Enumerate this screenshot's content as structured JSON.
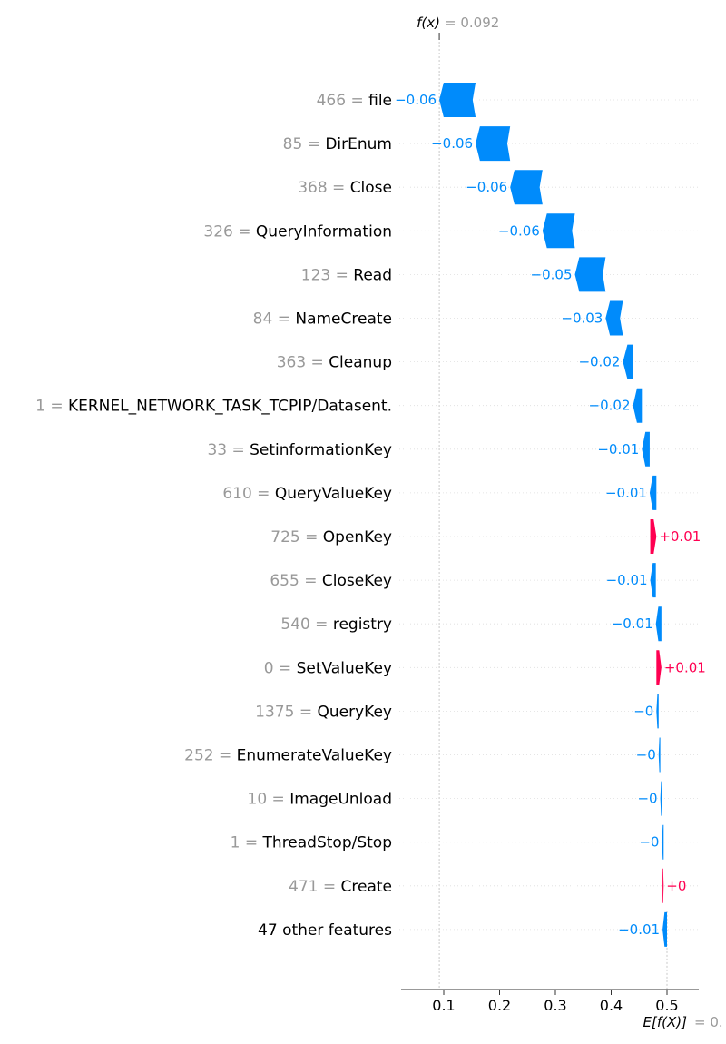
{
  "chart_data": {
    "type": "waterfall",
    "fx": {
      "label": "f(x)",
      "value": "0.092"
    },
    "expected": {
      "label": "E[f(X)]",
      "value": "0."
    },
    "features": [
      {
        "value": "466",
        "name": "file",
        "contribution": -0.065,
        "label": "−0.06"
      },
      {
        "value": "85",
        "name": "DirEnum",
        "contribution": -0.062,
        "label": "−0.06"
      },
      {
        "value": "368",
        "name": "Close",
        "contribution": -0.058,
        "label": "−0.06"
      },
      {
        "value": "326",
        "name": "QueryInformation",
        "contribution": -0.058,
        "label": "−0.06"
      },
      {
        "value": "123",
        "name": "Read",
        "contribution": -0.055,
        "label": "−0.05"
      },
      {
        "value": "84",
        "name": "NameCreate",
        "contribution": -0.031,
        "label": "−0.03"
      },
      {
        "value": "363",
        "name": "Cleanup",
        "contribution": -0.018,
        "label": "−0.02"
      },
      {
        "value": "1",
        "name": "KERNEL_NETWORK_TASK_TCPIP/Datasent.",
        "contribution": -0.016,
        "label": "−0.02"
      },
      {
        "value": "33",
        "name": "SetinformationKey",
        "contribution": -0.014,
        "label": "−0.01"
      },
      {
        "value": "610",
        "name": "QueryValueKey",
        "contribution": -0.012,
        "label": "−0.01"
      },
      {
        "value": "725",
        "name": "OpenKey",
        "contribution": 0.011,
        "label": "+0.01"
      },
      {
        "value": "655",
        "name": "CloseKey",
        "contribution": -0.01,
        "label": "−0.01"
      },
      {
        "value": "540",
        "name": "registry",
        "contribution": -0.01,
        "label": "−0.01"
      },
      {
        "value": "0",
        "name": "SetValueKey",
        "contribution": 0.009,
        "label": "+0.01"
      },
      {
        "value": "1375",
        "name": "QueryKey",
        "contribution": -0.004,
        "label": "−0"
      },
      {
        "value": "252",
        "name": "EnumerateValueKey",
        "contribution": -0.003,
        "label": "−0"
      },
      {
        "value": "10",
        "name": "ImageUnload",
        "contribution": -0.003,
        "label": "−0"
      },
      {
        "value": "1",
        "name": "ThreadStop/Stop",
        "contribution": -0.003,
        "label": "−0"
      },
      {
        "value": "471",
        "name": "Create",
        "contribution": 0.002,
        "label": "+0"
      },
      {
        "value": "",
        "name": "47 other features",
        "contribution": -0.008,
        "label": "−0.01"
      }
    ],
    "xaxis": {
      "ticks": [
        0.1,
        0.2,
        0.3,
        0.4,
        0.5
      ],
      "range": [
        0.03,
        0.555
      ]
    },
    "grid": false,
    "colors": {
      "negative": "#008bfb",
      "positive": "#ff0051",
      "muted": "#999999"
    }
  }
}
